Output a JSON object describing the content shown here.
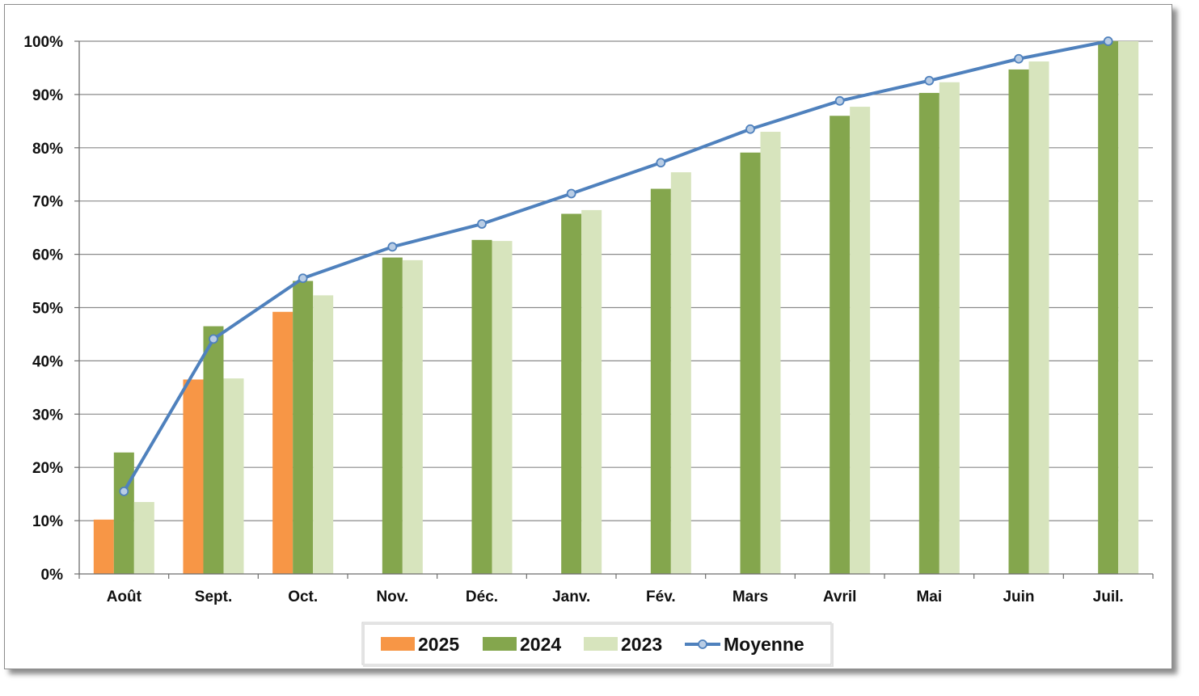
{
  "chart_data": {
    "type": "bar",
    "categories": [
      "Août",
      "Sept.",
      "Oct.",
      "Nov.",
      "Déc.",
      "Janv.",
      "Fév.",
      "Mars",
      "Avril",
      "Mai",
      "Juin",
      "Juil."
    ],
    "y_ticks": [
      "0%",
      "10%",
      "20%",
      "30%",
      "40%",
      "50%",
      "60%",
      "70%",
      "80%",
      "90%",
      "100%"
    ],
    "ylim": [
      0,
      100
    ],
    "unit": "%",
    "grid": true,
    "legend_position": "bottom",
    "series": [
      {
        "name": "2025",
        "kind": "bar",
        "color": "#f79646",
        "values": [
          10.2,
          36.5,
          49.2,
          null,
          null,
          null,
          null,
          null,
          null,
          null,
          null,
          null
        ]
      },
      {
        "name": "2024",
        "kind": "bar",
        "color": "#84a64d",
        "values": [
          22.8,
          46.5,
          55.0,
          59.4,
          62.7,
          67.6,
          72.3,
          79.1,
          86.0,
          90.3,
          94.7,
          100
        ]
      },
      {
        "name": "2023",
        "kind": "bar",
        "color": "#d7e4bd",
        "values": [
          13.5,
          36.7,
          52.3,
          58.9,
          62.5,
          68.3,
          75.4,
          83.0,
          87.7,
          92.3,
          96.2,
          100
        ]
      },
      {
        "name": "Moyenne",
        "kind": "line",
        "color": "#4f81bd",
        "marker_fill": "#b9cde5",
        "values": [
          15.5,
          44.1,
          55.5,
          61.4,
          65.7,
          71.4,
          77.2,
          83.5,
          88.8,
          92.6,
          96.7,
          100
        ]
      }
    ]
  }
}
